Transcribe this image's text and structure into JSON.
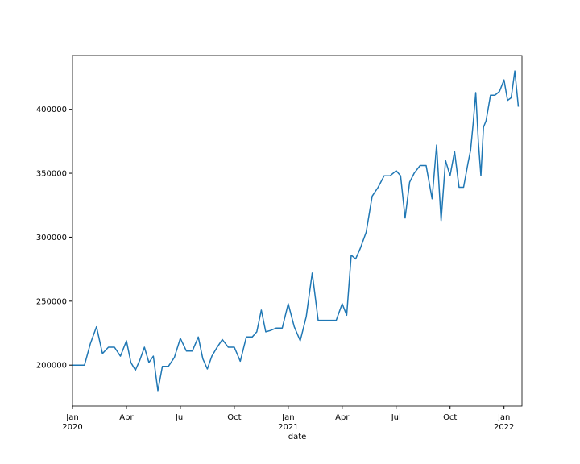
{
  "chart_data": {
    "type": "line",
    "xlabel": "date",
    "color": "#1f77b4",
    "x": [
      "2020-01",
      "2020-01",
      "2020-01",
      "2020-02",
      "2020-02",
      "2020-02",
      "2020-03",
      "2020-03",
      "2020-03",
      "2020-04",
      "2020-04",
      "2020-04",
      "2020-04",
      "2020-05",
      "2020-05",
      "2020-05",
      "2020-05",
      "2020-06",
      "2020-06",
      "2020-06",
      "2020-07",
      "2020-07",
      "2020-07",
      "2020-08",
      "2020-08",
      "2020-08",
      "2020-08",
      "2020-09",
      "2020-09",
      "2020-09",
      "2020-10",
      "2020-10",
      "2020-10",
      "2020-11",
      "2020-11",
      "2020-11",
      "2020-11",
      "2020-12",
      "2020-12",
      "2020-12",
      "2021-01",
      "2021-01",
      "2021-01",
      "2021-02",
      "2021-02",
      "2021-02",
      "2021-03",
      "2021-03",
      "2021-03",
      "2021-04",
      "2021-04",
      "2021-04",
      "2021-04",
      "2021-05",
      "2021-05",
      "2021-05",
      "2021-06",
      "2021-06",
      "2021-06",
      "2021-07",
      "2021-07",
      "2021-07",
      "2021-07",
      "2021-08",
      "2021-08",
      "2021-08",
      "2021-09",
      "2021-09",
      "2021-09",
      "2021-09",
      "2021-10",
      "2021-10",
      "2021-10",
      "2021-10",
      "2021-11",
      "2021-11",
      "2021-11",
      "2021-11",
      "2021-11",
      "2021-11",
      "2021-11",
      "2021-12",
      "2021-12",
      "2021-12",
      "2021-12",
      "2022-01",
      "2022-01",
      "2022-01",
      "2022-01",
      "2022-01"
    ],
    "values": [
      200000,
      200000,
      200000,
      217000,
      230000,
      209000,
      214000,
      214000,
      207000,
      219000,
      202000,
      196000,
      204000,
      214000,
      202000,
      207000,
      180000,
      199000,
      199000,
      206000,
      221000,
      211000,
      211000,
      222000,
      205000,
      197000,
      207000,
      213000,
      220000,
      214000,
      214000,
      203000,
      222000,
      222000,
      226000,
      243000,
      226000,
      227000,
      229000,
      229000,
      248000,
      230000,
      219000,
      238000,
      272000,
      235000,
      235000,
      235000,
      235000,
      248000,
      239000,
      286000,
      283000,
      291000,
      304000,
      332000,
      339000,
      348000,
      348000,
      352000,
      348000,
      315000,
      343000,
      350000,
      356000,
      356000,
      330000,
      372000,
      313000,
      360000,
      348000,
      367000,
      339000,
      339000,
      358000,
      368000,
      389000,
      413000,
      375000,
      348000,
      386000,
      391000,
      411000,
      411000,
      414000,
      423000,
      407000,
      409000,
      430000,
      402000
    ],
    "xlim": [
      "2020-01",
      "2022-02"
    ],
    "xticks": [
      {
        "value": "2020-01",
        "label": "Jan 2020"
      },
      {
        "value": "2020-04",
        "label": "Apr"
      },
      {
        "value": "2020-07",
        "label": "Jul"
      },
      {
        "value": "2020-10",
        "label": "Oct"
      },
      {
        "value": "2021-01",
        "label": "Jan 2021"
      },
      {
        "value": "2021-04",
        "label": "Apr"
      },
      {
        "value": "2021-07",
        "label": "Jul"
      },
      {
        "value": "2021-10",
        "label": "Oct"
      },
      {
        "value": "2022-01",
        "label": "Jan 2022"
      }
    ],
    "ylim": [
      168000,
      442000
    ],
    "yticks": [
      200000,
      250000,
      300000,
      350000,
      400000
    ]
  }
}
